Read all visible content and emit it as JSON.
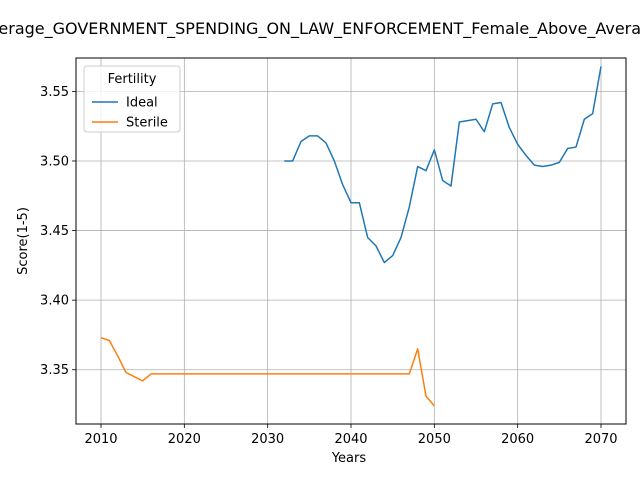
{
  "chart_data": {
    "type": "line",
    "title": "Average_GOVERNMENT_SPENDING_ON_LAW_ENFORCEMENT_Female_Above_Average",
    "xlabel": "Years",
    "ylabel": "Score(1-5)",
    "xlim": [
      2007,
      2073
    ],
    "ylim": [
      3.311,
      3.574
    ],
    "xticks": [
      2010,
      2020,
      2030,
      2040,
      2050,
      2060,
      2070
    ],
    "yticks": [
      3.35,
      3.4,
      3.45,
      3.5,
      3.55
    ],
    "ytick_labels": [
      "3.35",
      "3.40",
      "3.45",
      "3.50",
      "3.55"
    ],
    "grid": true,
    "legend": {
      "title": "Fertility",
      "placement": "top-left"
    },
    "series": [
      {
        "name": "Ideal",
        "color": "#1f77b4",
        "x": [
          2032,
          2033,
          2034,
          2035,
          2036,
          2037,
          2038,
          2039,
          2040,
          2041,
          2042,
          2043,
          2044,
          2045,
          2046,
          2047,
          2048,
          2049,
          2050,
          2051,
          2052,
          2053,
          2054,
          2055,
          2056,
          2057,
          2058,
          2059,
          2060,
          2061,
          2062,
          2063,
          2064,
          2065,
          2066,
          2067,
          2068,
          2069,
          2070
        ],
        "y": [
          3.5,
          3.5,
          3.514,
          3.518,
          3.518,
          3.513,
          3.5,
          3.483,
          3.47,
          3.47,
          3.445,
          3.439,
          3.427,
          3.432,
          3.445,
          3.467,
          3.496,
          3.493,
          3.508,
          3.486,
          3.482,
          3.528,
          3.529,
          3.53,
          3.521,
          3.541,
          3.542,
          3.524,
          3.512,
          3.504,
          3.497,
          3.496,
          3.497,
          3.499,
          3.509,
          3.51,
          3.53,
          3.534,
          3.568
        ]
      },
      {
        "name": "Sterile",
        "color": "#ff7f0e",
        "x": [
          2010,
          2011,
          2012,
          2013,
          2014,
          2015,
          2016,
          2017,
          2018,
          2019,
          2020,
          2021,
          2022,
          2023,
          2024,
          2025,
          2026,
          2027,
          2028,
          2029,
          2030,
          2031,
          2032,
          2033,
          2034,
          2035,
          2036,
          2037,
          2038,
          2039,
          2040,
          2041,
          2042,
          2043,
          2044,
          2045,
          2046,
          2047,
          2048,
          2049,
          2050
        ],
        "y": [
          3.373,
          3.371,
          3.36,
          3.348,
          3.345,
          3.342,
          3.347,
          3.347,
          3.347,
          3.347,
          3.347,
          3.347,
          3.347,
          3.347,
          3.347,
          3.347,
          3.347,
          3.347,
          3.347,
          3.347,
          3.347,
          3.347,
          3.347,
          3.347,
          3.347,
          3.347,
          3.347,
          3.347,
          3.347,
          3.347,
          3.347,
          3.347,
          3.347,
          3.347,
          3.347,
          3.347,
          3.347,
          3.347,
          3.365,
          3.331,
          3.324
        ]
      }
    ]
  }
}
